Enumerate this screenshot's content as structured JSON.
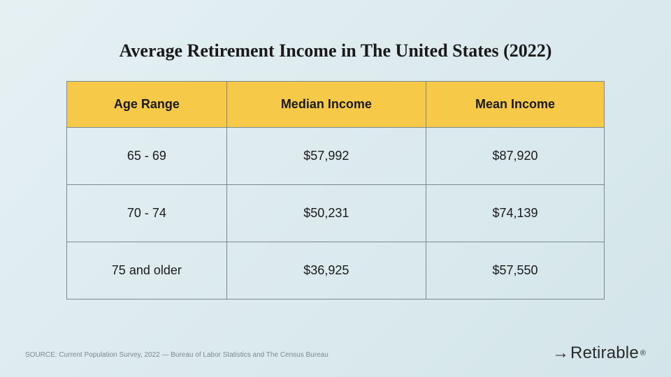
{
  "title": "Average Retirement Income in The United States (2022)",
  "table": {
    "type": "table",
    "columns": [
      "Age Range",
      "Median Income",
      "Mean Income"
    ],
    "rows": [
      [
        "65 - 69",
        "$57,992",
        "$87,920"
      ],
      [
        "70 - 74",
        "$50,231",
        "$74,139"
      ],
      [
        "75 and older",
        "$36,925",
        "$57,550"
      ]
    ],
    "header_bg": "#f7c948",
    "border_color": "#7a8a8f",
    "header_fontsize": 18,
    "cell_fontsize": 18,
    "text_color": "#1a1a1a"
  },
  "source": "SOURCE: Current Population Survey, 2022 — Bureau of Labor Statistics and The Census Bureau",
  "brand": {
    "name": "Retirable",
    "registered": "®"
  },
  "background_gradient": [
    "#e5f0f3",
    "#d3e5ea"
  ]
}
